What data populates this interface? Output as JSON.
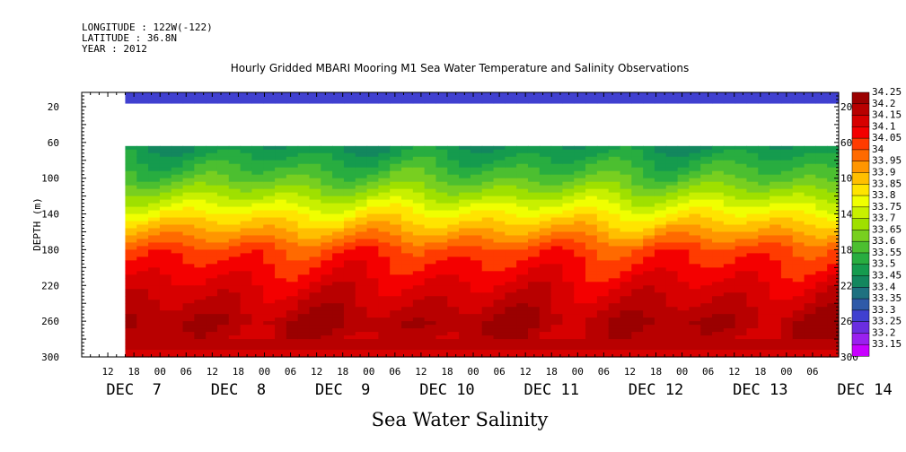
{
  "header": {
    "longitude": "LONGITUDE : 122W(-122)",
    "latitude": "LATITUDE : 36.8N",
    "year": "YEAR : 2012"
  },
  "chart_data": {
    "type": "heatmap",
    "title": "Hourly Gridded MBARI Mooring M1 Sea Water Temperature and Salinity Observations",
    "xlabel": "Sea Water Salinity",
    "ylabel": "DEPTH (m)",
    "x_range_hours": "2012-12-07 06:00 to 2012-12-14 12:00",
    "x_hour_ticks": [
      "12",
      "18",
      "00",
      "06",
      "12",
      "18",
      "00",
      "06",
      "12",
      "18",
      "00",
      "06",
      "12",
      "18",
      "00",
      "06",
      "12",
      "18",
      "00",
      "06",
      "12",
      "18",
      "00",
      "06",
      "12",
      "18",
      "00",
      "06"
    ],
    "x_day_labels": [
      "DEC  7",
      "DEC  8",
      "DEC  9",
      "DEC 10",
      "DEC 11",
      "DEC 12",
      "DEC 13",
      "DEC 14"
    ],
    "y_ticks": [
      20,
      60,
      100,
      140,
      180,
      220,
      260,
      300
    ],
    "ylim": [
      300,
      4
    ],
    "data_start": "2012-12-07 16:00",
    "colorbar_levels": [
      "34.25",
      "34.2",
      "34.15",
      "34.1",
      "34.05",
      "34",
      "33.95",
      "33.9",
      "33.85",
      "33.8",
      "33.75",
      "33.7",
      "33.65",
      "33.6",
      "33.55",
      "33.5",
      "33.45",
      "33.4",
      "33.35",
      "33.3",
      "33.25",
      "33.2",
      "33.15"
    ],
    "colorbar_colors": [
      "#9b0000",
      "#b80000",
      "#d70000",
      "#f40000",
      "#ff3b00",
      "#ff6a00",
      "#ff9600",
      "#ffbf00",
      "#ffe400",
      "#f0ff00",
      "#c8f000",
      "#9fe000",
      "#78cf20",
      "#4cbf30",
      "#28ad40",
      "#159b4e",
      "#13875e",
      "#1f7180",
      "#2f5aa8",
      "#4040d0",
      "#6a2ee0",
      "#9a20ef",
      "#c800ff"
    ],
    "profile_depths": [
      12,
      35,
      60,
      100,
      140,
      180,
      220,
      260,
      300
    ],
    "profile_values": [
      33.28,
      null,
      33.47,
      33.62,
      33.84,
      34.05,
      34.14,
      34.22,
      34.16
    ]
  }
}
